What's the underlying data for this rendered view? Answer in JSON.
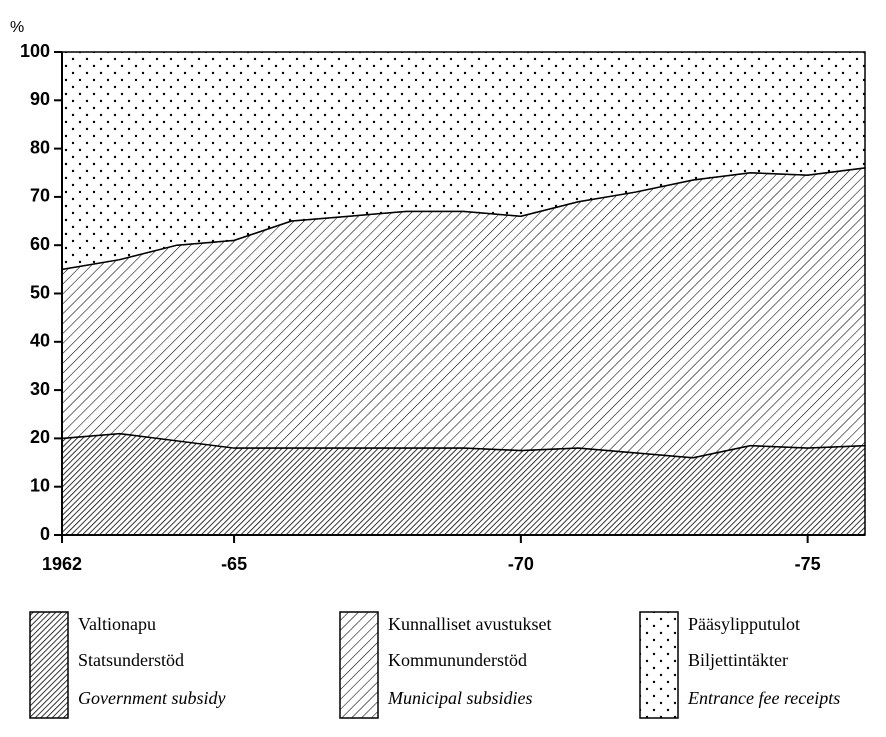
{
  "chart_data": {
    "type": "stacked-area",
    "y_label": "%",
    "x": [
      1962,
      1963,
      1964,
      1965,
      1966,
      1967,
      1968,
      1969,
      1970,
      1971,
      1972,
      1973,
      1974,
      1975,
      1976
    ],
    "xlim": [
      1962,
      1976
    ],
    "xticks": [
      {
        "value": 1962,
        "label": "1962"
      },
      {
        "value": 1965,
        "label": "-65"
      },
      {
        "value": 1970,
        "label": "-70"
      },
      {
        "value": 1975,
        "label": "-75"
      }
    ],
    "ylim": [
      0,
      100
    ],
    "yticks": [
      0,
      10,
      20,
      30,
      40,
      50,
      60,
      70,
      80,
      90,
      100
    ],
    "grid": false,
    "legend": "bottom",
    "series": [
      {
        "name": "Valtionapu",
        "name_sv": "Statsunderstöd",
        "name_en": "Government subsidy",
        "color": "#000000",
        "pattern": "hatch-dense",
        "values": [
          20,
          21,
          19.5,
          18,
          18,
          18,
          18,
          18,
          17.5,
          18,
          17,
          16,
          18.5,
          18,
          18.5
        ]
      },
      {
        "name": "Kunnalliset avustukset",
        "name_sv": "Kommununderstöd",
        "name_en": "Municipal subsidies",
        "color": "#000000",
        "pattern": "hatch",
        "values": [
          35,
          36,
          40.5,
          43,
          47,
          48,
          49,
          49,
          48.5,
          51,
          54,
          57.5,
          56.5,
          56.5,
          57.5
        ]
      },
      {
        "name": "Pääsylipputulot",
        "name_sv": "Biljettintäkter",
        "name_en": "Entrance fee receipts",
        "color": "#000000",
        "pattern": "dots",
        "values": [
          45,
          43,
          40,
          39,
          35,
          34,
          33,
          33,
          34,
          31,
          29,
          26.5,
          25,
          25.5,
          24
        ]
      }
    ]
  }
}
